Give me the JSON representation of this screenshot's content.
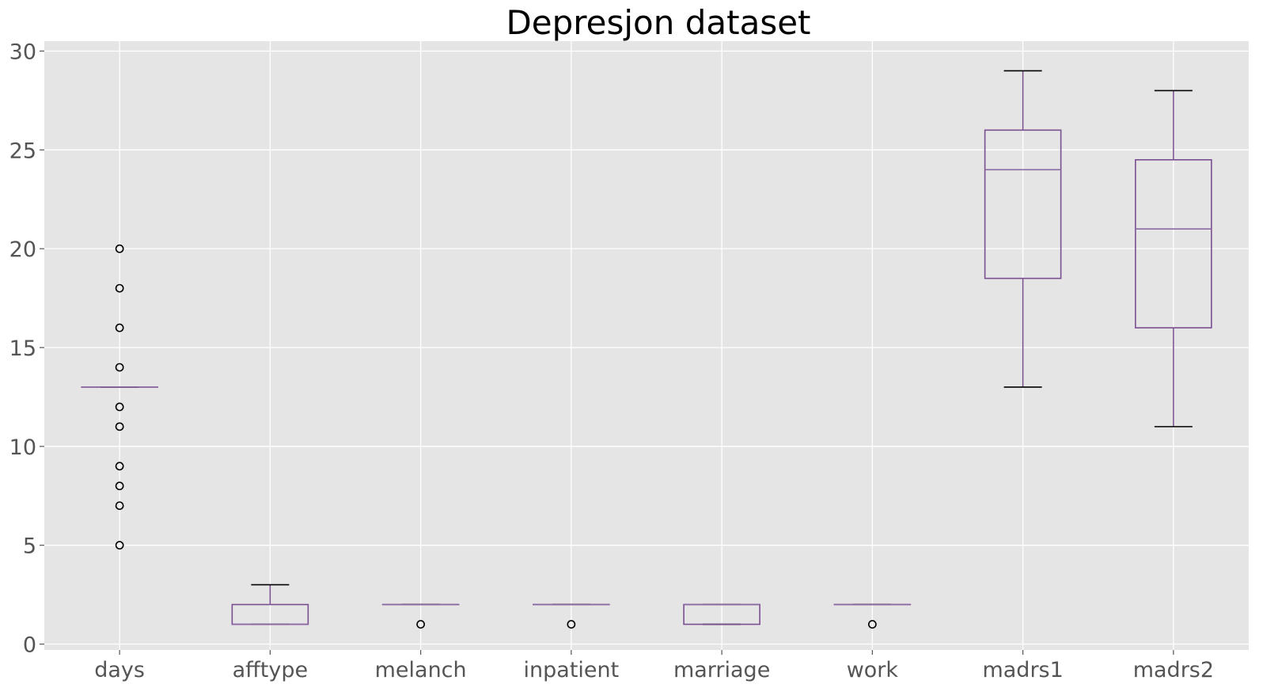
{
  "chart_data": {
    "type": "box",
    "title": "Depresjon dataset",
    "xlabel": "",
    "ylabel": "",
    "ylim": [
      -0.3,
      30.5
    ],
    "yticks": [
      0,
      5,
      10,
      15,
      20,
      25,
      30
    ],
    "grid": true,
    "colors": {
      "background": "#e5e5e5",
      "grid": "#ffffff",
      "box": "#7a4f8f",
      "median": "#8a6aa3",
      "whisker": "#7a4f8f",
      "cap": "#000000",
      "flier": "#000000"
    },
    "categories": [
      "days",
      "afftype",
      "melanch",
      "inpatient",
      "marriage",
      "work",
      "madrs1",
      "madrs2"
    ],
    "boxes": [
      {
        "label": "days",
        "whislo": 13,
        "q1": 13,
        "med": 13,
        "q3": 13,
        "whishi": 13,
        "fliers": [
          20,
          18,
          16,
          14,
          12,
          11,
          9,
          8,
          7,
          5
        ]
      },
      {
        "label": "afftype",
        "whislo": 1,
        "q1": 1,
        "med": 1,
        "q3": 2,
        "whishi": 3,
        "fliers": []
      },
      {
        "label": "melanch",
        "whislo": 2,
        "q1": 2,
        "med": 2,
        "q3": 2,
        "whishi": 2,
        "fliers": [
          1
        ]
      },
      {
        "label": "inpatient",
        "whislo": 2,
        "q1": 2,
        "med": 2,
        "q3": 2,
        "whishi": 2,
        "fliers": [
          1
        ]
      },
      {
        "label": "marriage",
        "whislo": 1,
        "q1": 1,
        "med": 2,
        "q3": 2,
        "whishi": 2,
        "fliers": []
      },
      {
        "label": "work",
        "whislo": 2,
        "q1": 2,
        "med": 2,
        "q3": 2,
        "whishi": 2,
        "fliers": [
          1
        ]
      },
      {
        "label": "madrs1",
        "whislo": 13,
        "q1": 18.5,
        "med": 24,
        "q3": 26,
        "whishi": 29,
        "fliers": []
      },
      {
        "label": "madrs2",
        "whislo": 11,
        "q1": 16,
        "med": 21,
        "q3": 24.5,
        "whishi": 28,
        "fliers": []
      }
    ]
  }
}
